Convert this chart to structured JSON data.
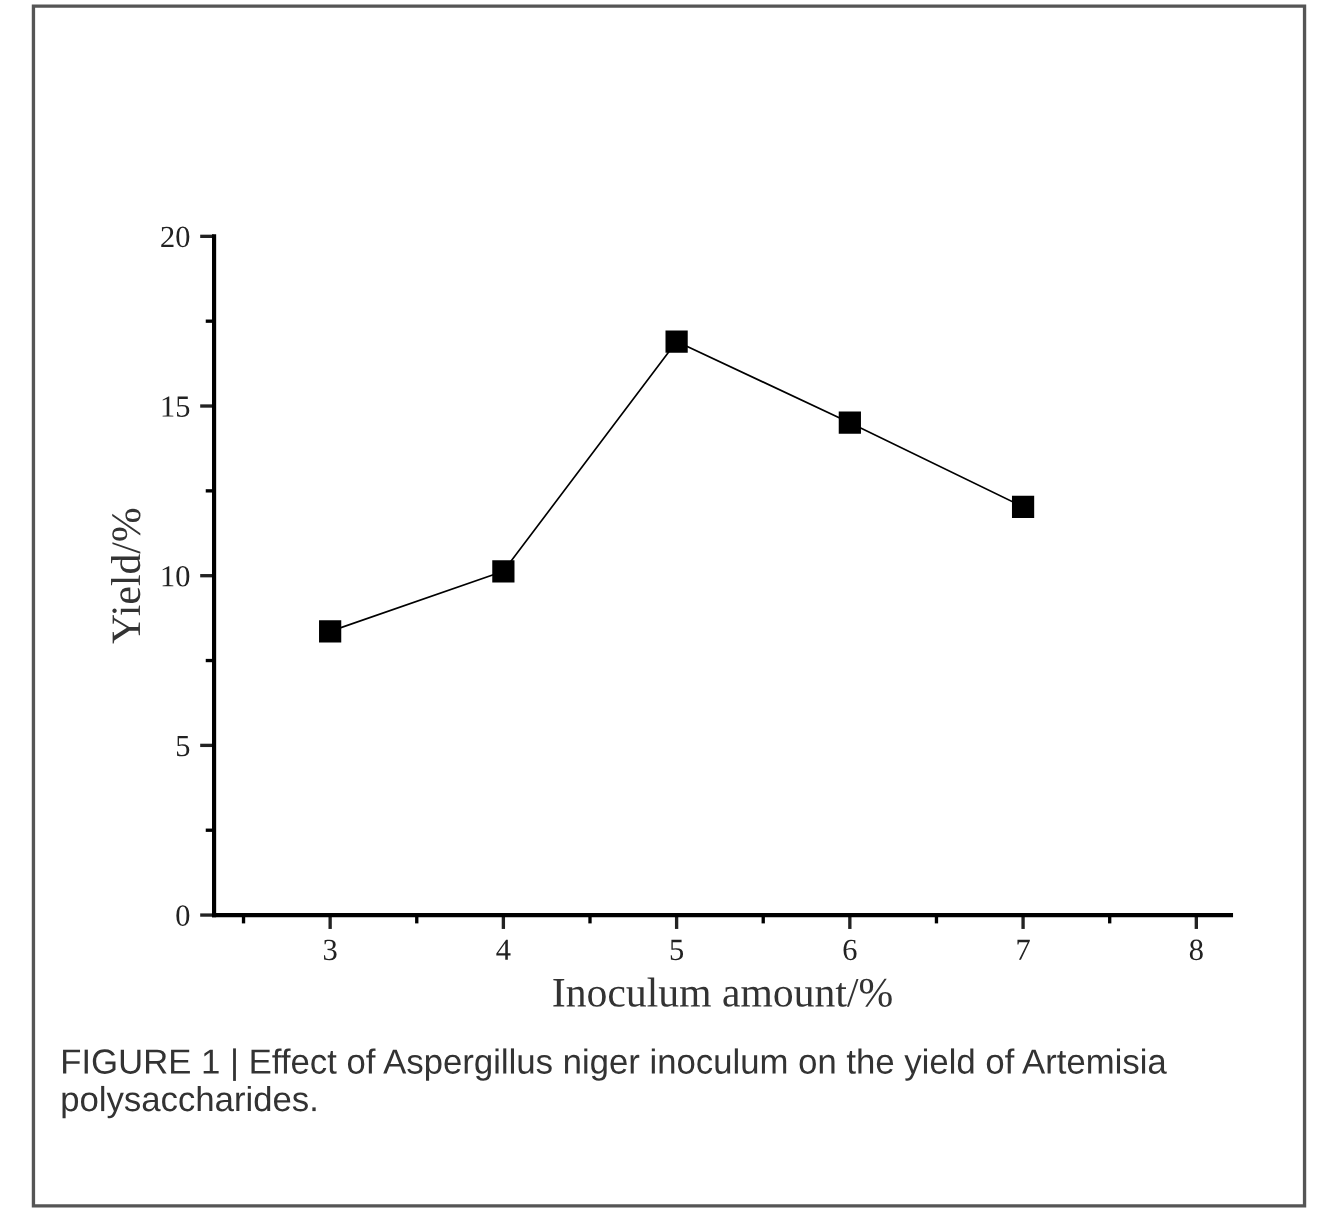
{
  "chart_data": {
    "type": "line",
    "xlabel": "Inoculum amount/%",
    "ylabel": "Yield/%",
    "x": [
      3,
      4,
      5,
      6,
      7
    ],
    "series": [
      {
        "color": "#000000",
        "values": [
          8.36,
          10.13,
          16.9,
          14.51,
          12.03
        ]
      }
    ],
    "xlim": [
      2.33,
      8.2
    ],
    "xticks": [
      3,
      4,
      5,
      6,
      7,
      8
    ],
    "ylim": [
      0,
      20
    ],
    "yticks": [
      0,
      5,
      10,
      15,
      20
    ],
    "marker": "square",
    "line_style": "solid",
    "grid": false,
    "legend": false,
    "annotations": [
      "FIGURE 1 | Effect of Aspergillus niger inoculum on the yield of Artemisia polysaccharides."
    ]
  }
}
